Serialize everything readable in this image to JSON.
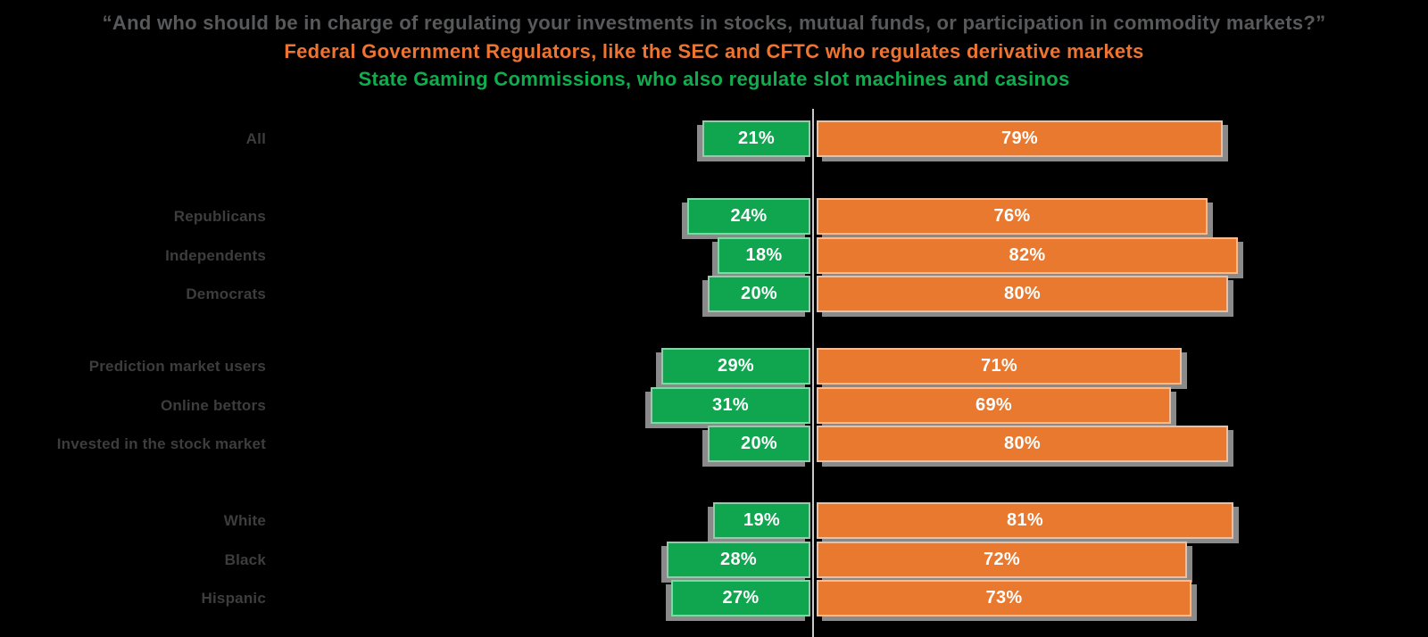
{
  "header": {
    "question": "“And who should be in charge of regulating your investments in stocks, mutual funds, or participation in commodity markets?”",
    "option_orange": "Federal Government Regulators, like the SEC and CFTC who regulates derivative markets",
    "option_green": "State Gaming Commissions, who also regulate slot machines and casinos"
  },
  "colors": {
    "green_bar": "#0fa64f",
    "orange_bar": "#e8792f",
    "question_text": "#58595b",
    "orange_text": "#ed7431",
    "green_text": "#0fad4e",
    "category_text": "#3d3d3d",
    "axis_line": "#c9c9c9",
    "bar_value_text": "#ffffff",
    "shadow": "#999999"
  },
  "chart_data": {
    "type": "bar",
    "orientation": "horizontal diverging stacked",
    "unit": "%",
    "title": "And who should be in charge of regulating your investments in stocks, mutual funds, or participation in commodity markets?",
    "legend": [
      {
        "label": "State Gaming Commissions, who also regulate slot machines and casinos",
        "color": "#0fa64f"
      },
      {
        "label": "Federal Government Regulators, like the SEC and CFTC who regulates derivative markets",
        "color": "#e8792f"
      }
    ],
    "legend_position": "top subtitle lines",
    "xlim": [
      0,
      100
    ],
    "grid": false,
    "groups": [
      {
        "rows": [
          {
            "label": "All",
            "green": 21,
            "orange": 79
          }
        ]
      },
      {
        "rows": [
          {
            "label": "Republicans",
            "green": 24,
            "orange": 76
          },
          {
            "label": "Independents",
            "green": 18,
            "orange": 82
          },
          {
            "label": "Democrats",
            "green": 20,
            "orange": 80
          }
        ]
      },
      {
        "rows": [
          {
            "label": "Prediction market users",
            "green": 29,
            "orange": 71
          },
          {
            "label": "Online bettors",
            "green": 31,
            "orange": 69
          },
          {
            "label": "Invested in the stock market",
            "green": 20,
            "orange": 80
          }
        ]
      },
      {
        "rows": [
          {
            "label": "White",
            "green": 19,
            "orange": 81
          },
          {
            "label": "Black",
            "green": 28,
            "orange": 72
          },
          {
            "label": "Hispanic",
            "green": 27,
            "orange": 73
          }
        ]
      }
    ]
  }
}
